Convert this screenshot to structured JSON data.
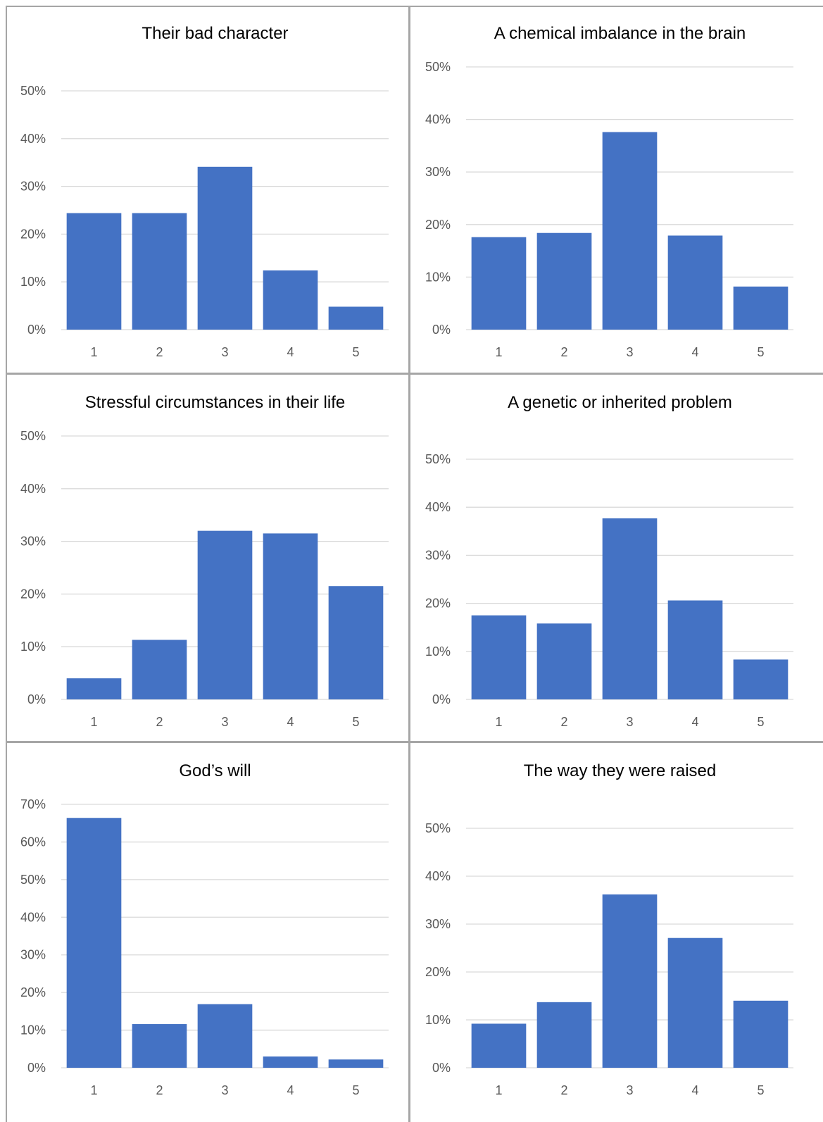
{
  "colors": {
    "bar": "#4472c4",
    "grid": "#d9d9d9",
    "text": "#595959",
    "border": "#a6a6a6"
  },
  "chart_data": [
    {
      "type": "bar",
      "title": "Their bad character",
      "categories": [
        "1",
        "2",
        "3",
        "4",
        "5"
      ],
      "values": [
        24.4,
        24.4,
        34.1,
        12.4,
        4.8
      ],
      "yticks": [
        "0%",
        "10%",
        "20%",
        "30%",
        "40%",
        "50%"
      ],
      "ylim": [
        0,
        50
      ],
      "xlabel": "",
      "ylabel": "",
      "grid": true,
      "legend": "none"
    },
    {
      "type": "bar",
      "title": "A chemical imbalance in the brain",
      "categories": [
        "1",
        "2",
        "3",
        "4",
        "5"
      ],
      "values": [
        17.6,
        18.4,
        37.6,
        17.9,
        8.2
      ],
      "yticks": [
        "0%",
        "10%",
        "20%",
        "30%",
        "40%",
        "50%"
      ],
      "ylim": [
        0,
        50
      ],
      "xlabel": "",
      "ylabel": "",
      "grid": true,
      "legend": "none"
    },
    {
      "type": "bar",
      "title": "Stressful circumstances in their life",
      "categories": [
        "1",
        "2",
        "3",
        "4",
        "5"
      ],
      "values": [
        4.0,
        11.3,
        32.0,
        31.5,
        21.5
      ],
      "yticks": [
        "0%",
        "10%",
        "20%",
        "30%",
        "40%",
        "50%"
      ],
      "ylim": [
        0,
        50
      ],
      "xlabel": "",
      "ylabel": "",
      "grid": true,
      "legend": "none"
    },
    {
      "type": "bar",
      "title": "A genetic or inherited problem",
      "categories": [
        "1",
        "2",
        "3",
        "4",
        "5"
      ],
      "values": [
        17.5,
        15.8,
        37.7,
        20.6,
        8.3
      ],
      "yticks": [
        "0%",
        "10%",
        "20%",
        "30%",
        "40%",
        "50%"
      ],
      "ylim": [
        0,
        50
      ],
      "xlabel": "",
      "ylabel": "",
      "grid": true,
      "legend": "none"
    },
    {
      "type": "bar",
      "title": "God’s will",
      "categories": [
        "1",
        "2",
        "3",
        "4",
        "5"
      ],
      "values": [
        66.4,
        11.6,
        16.9,
        3.0,
        2.2
      ],
      "yticks": [
        "0%",
        "10%",
        "20%",
        "30%",
        "40%",
        "50%",
        "60%",
        "70%"
      ],
      "ylim": [
        0,
        70
      ],
      "xlabel": "",
      "ylabel": "",
      "grid": true,
      "legend": "none"
    },
    {
      "type": "bar",
      "title": "The way they were raised",
      "categories": [
        "1",
        "2",
        "3",
        "4",
        "5"
      ],
      "values": [
        9.2,
        13.7,
        36.2,
        27.1,
        14.0
      ],
      "yticks": [
        "0%",
        "10%",
        "20%",
        "30%",
        "40%",
        "50%"
      ],
      "ylim": [
        0,
        50
      ],
      "xlabel": "",
      "ylabel": "",
      "grid": true,
      "legend": "none"
    }
  ]
}
